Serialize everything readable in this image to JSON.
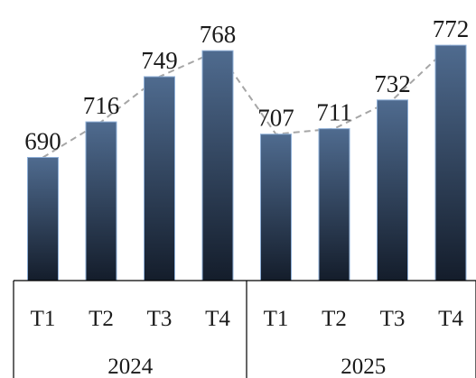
{
  "chart_data": {
    "type": "bar",
    "title": "",
    "xlabel": "",
    "ylabel": "",
    "ylim": [
      600,
      780
    ],
    "grid": false,
    "legend": "none",
    "groups": [
      {
        "label": "2024",
        "categories": [
          "T1",
          "T2",
          "T3",
          "T4"
        ]
      },
      {
        "label": "2025",
        "categories": [
          "T1",
          "T2",
          "T3",
          "T4"
        ]
      }
    ],
    "categories": [
      "T1",
      "T2",
      "T3",
      "T4",
      "T1",
      "T2",
      "T3",
      "T4"
    ],
    "values": [
      690,
      716,
      749,
      768,
      707,
      711,
      732,
      772
    ],
    "data_labels": [
      "690",
      "716",
      "749",
      "768",
      "707",
      "711",
      "732",
      "772"
    ],
    "trend_line": {
      "style": "dashed",
      "color": "#a6a6a6"
    },
    "colors": {
      "bar_top": "#4f6b8f",
      "bar_bottom": "#141d2b",
      "bar_edge": "#8fb0d8"
    }
  }
}
